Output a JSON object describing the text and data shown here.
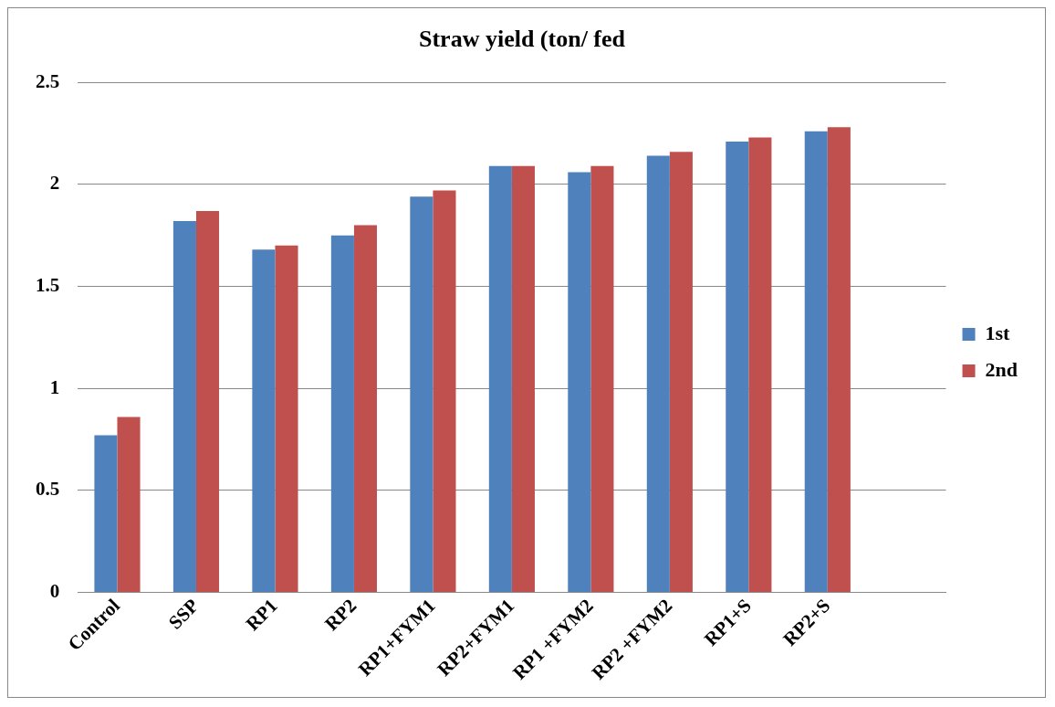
{
  "chart_data": {
    "type": "bar",
    "title": "Straw yield (ton/ fed",
    "categories": [
      "Control",
      "SSP",
      "RP1",
      "RP2",
      "RP1+FYM1",
      "RP2+FYM1",
      "RP1 +FYM2",
      "RP2 +FYM2",
      "RP1+S",
      "RP2+S",
      null
    ],
    "series": [
      {
        "name": "1st",
        "color": "#4f81bd",
        "values": [
          0.77,
          1.82,
          1.68,
          1.75,
          1.94,
          2.09,
          2.06,
          2.14,
          2.21,
          2.26,
          null
        ]
      },
      {
        "name": "2nd",
        "color": "#c0504d",
        "values": [
          0.86,
          1.87,
          1.7,
          1.8,
          1.97,
          2.09,
          2.09,
          2.16,
          2.23,
          2.28,
          null
        ]
      }
    ],
    "ylim": [
      0,
      2.5
    ],
    "yticks": [
      0,
      0.5,
      1,
      1.5,
      2,
      2.5
    ],
    "grid": "y",
    "legend": "right"
  }
}
